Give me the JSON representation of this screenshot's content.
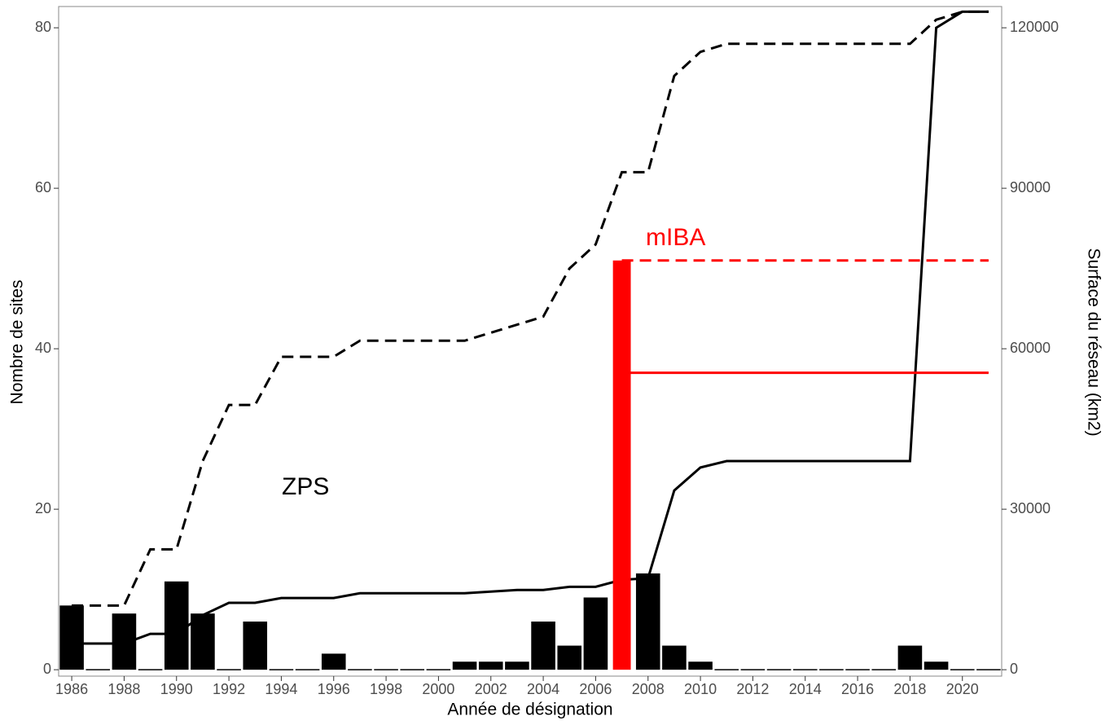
{
  "chart_data": {
    "type": "bar",
    "x_label": "Année de désignation",
    "y_label": "Nombre de sites",
    "y2_label": "Surface du réseau (km2)",
    "annotations": [
      {
        "text": "ZPS",
        "color": "#000000"
      },
      {
        "text": "mIBA",
        "color": "#ff0000"
      }
    ],
    "xlim": [
      1985.5,
      2021.5
    ],
    "xticks": [
      1986,
      1988,
      1990,
      1992,
      1994,
      1996,
      1998,
      2000,
      2002,
      2004,
      2006,
      2008,
      2010,
      2012,
      2014,
      2016,
      2018,
      2020
    ],
    "ylim": [
      -0.8,
      82.65
    ],
    "yticks": [
      0,
      20,
      40,
      60,
      80
    ],
    "y2lim": [
      -1200,
      123975
    ],
    "y2ticks": [
      0,
      30000,
      60000,
      90000,
      120000
    ],
    "series": [
      {
        "type": "line",
        "color": "#000000",
        "dash": true,
        "x": [
          1986,
          1987,
          1988,
          1989,
          1990,
          1991,
          1992,
          1993,
          1994,
          1995,
          1996,
          1997,
          1998,
          1999,
          2000,
          2001,
          2002,
          2003,
          2004,
          2005,
          2006,
          2007,
          2008,
          2009,
          2010,
          2011,
          2012,
          2013,
          2014,
          2015,
          2016,
          2017,
          2018,
          2019,
          2020,
          2021
        ],
        "values": [
          8,
          8,
          8,
          15,
          15,
          26,
          33,
          33,
          39,
          39,
          39,
          41,
          41,
          41,
          41,
          41,
          42,
          43,
          44,
          50,
          53,
          62,
          62,
          74,
          77,
          78,
          78,
          78,
          78,
          78,
          78,
          78,
          78,
          81,
          82,
          82
        ]
      },
      {
        "type": "line",
        "color": "#000000",
        "dash": false,
        "axis": "y2",
        "x": [
          1986,
          1987,
          1988,
          1989,
          1990,
          1991,
          1992,
          1993,
          1994,
          1995,
          1996,
          1997,
          1998,
          1999,
          2000,
          2001,
          2002,
          2003,
          2004,
          2005,
          2006,
          2007,
          2008,
          2009,
          2010,
          2011,
          2012,
          2013,
          2014,
          2015,
          2016,
          2017,
          2018,
          2019,
          2020,
          2021
        ],
        "values": [
          4900,
          4900,
          4900,
          6700,
          6700,
          10200,
          12500,
          12500,
          13400,
          13400,
          13400,
          14300,
          14300,
          14300,
          14300,
          14300,
          14600,
          14900,
          14900,
          15500,
          15500,
          16800,
          17100,
          33500,
          37800,
          39000,
          39000,
          39000,
          39000,
          39000,
          39000,
          39000,
          39000,
          120000,
          123000,
          123000
        ]
      },
      {
        "type": "bar",
        "color": "#000000",
        "width": 0.92,
        "x": [
          1986,
          1987,
          1988,
          1989,
          1990,
          1991,
          1992,
          1993,
          1994,
          1995,
          1996,
          1997,
          1998,
          1999,
          2000,
          2001,
          2002,
          2003,
          2004,
          2005,
          2006,
          2008,
          2009,
          2010,
          2011,
          2012,
          2013,
          2014,
          2015,
          2016,
          2017,
          2018,
          2019,
          2020,
          2021
        ],
        "values": [
          8,
          0,
          7,
          0,
          11,
          7,
          0,
          6,
          0,
          0,
          2,
          0,
          0,
          0,
          0,
          1,
          1,
          1,
          6,
          3,
          9,
          12,
          3,
          1,
          0,
          0,
          0,
          0,
          0,
          0,
          0,
          3,
          1,
          0,
          0
        ]
      },
      {
        "type": "line",
        "color": "#ff0000",
        "dash": true,
        "x": [
          2007,
          2021
        ],
        "values": [
          51,
          51
        ]
      },
      {
        "type": "line",
        "color": "#ff0000",
        "dash": false,
        "axis": "y2",
        "x": [
          2007,
          2021
        ],
        "values": [
          55500,
          55500
        ]
      },
      {
        "type": "bar",
        "color": "#ff0000",
        "width": 0.68,
        "x": [
          2007
        ],
        "values": [
          51
        ]
      }
    ]
  }
}
